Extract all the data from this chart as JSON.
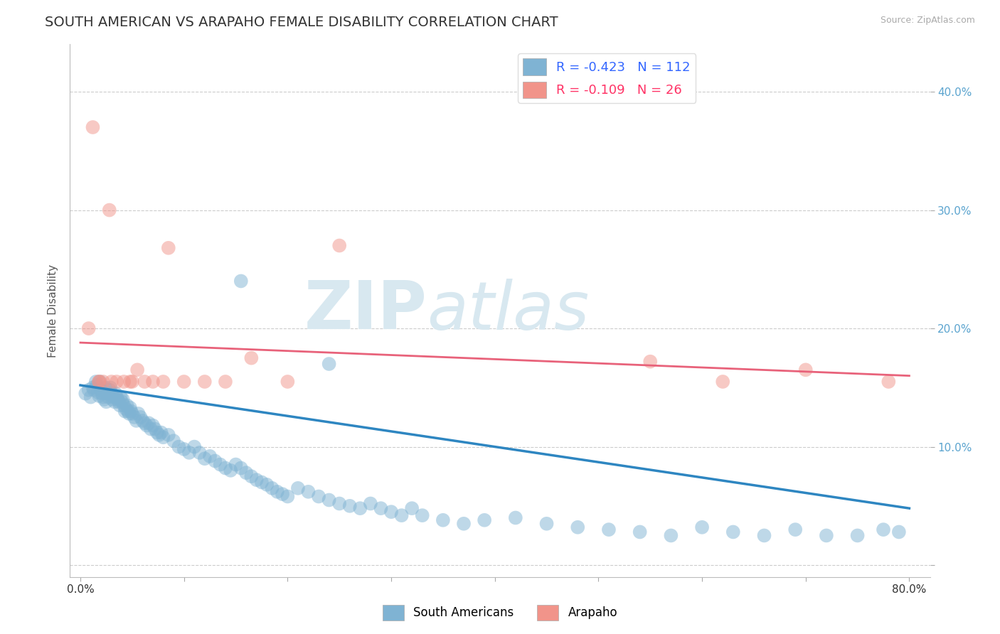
{
  "title": "SOUTH AMERICAN VS ARAPAHO FEMALE DISABILITY CORRELATION CHART",
  "source": "Source: ZipAtlas.com",
  "ylabel": "Female Disability",
  "xlim": [
    -0.01,
    0.82
  ],
  "ylim": [
    -0.01,
    0.44
  ],
  "x_ticks": [
    0.0,
    0.1,
    0.2,
    0.3,
    0.4,
    0.5,
    0.6,
    0.7,
    0.8
  ],
  "y_ticks": [
    0.0,
    0.1,
    0.2,
    0.3,
    0.4
  ],
  "y_tick_labels_right": [
    "",
    "10.0%",
    "20.0%",
    "30.0%",
    "40.0%"
  ],
  "x_tick_labels": [
    "0.0%",
    "",
    "",
    "",
    "",
    "",
    "",
    "",
    "80.0%"
  ],
  "blue_R": -0.423,
  "blue_N": 112,
  "pink_R": -0.109,
  "pink_N": 26,
  "blue_color": "#7FB3D3",
  "pink_color": "#F1948A",
  "blue_line_color": "#2E86C1",
  "pink_line_color": "#E8627A",
  "watermark_zip": "ZIP",
  "watermark_atlas": "atlas",
  "legend_label_blue": "South Americans",
  "legend_label_pink": "Arapaho",
  "blue_x": [
    0.005,
    0.008,
    0.01,
    0.012,
    0.013,
    0.015,
    0.016,
    0.017,
    0.018,
    0.019,
    0.02,
    0.021,
    0.022,
    0.023,
    0.024,
    0.025,
    0.026,
    0.027,
    0.028,
    0.029,
    0.03,
    0.031,
    0.032,
    0.033,
    0.034,
    0.035,
    0.036,
    0.037,
    0.038,
    0.039,
    0.04,
    0.041,
    0.042,
    0.043,
    0.044,
    0.045,
    0.046,
    0.047,
    0.048,
    0.049,
    0.05,
    0.052,
    0.054,
    0.056,
    0.058,
    0.06,
    0.062,
    0.064,
    0.066,
    0.068,
    0.07,
    0.072,
    0.074,
    0.076,
    0.078,
    0.08,
    0.085,
    0.09,
    0.095,
    0.1,
    0.105,
    0.11,
    0.115,
    0.12,
    0.125,
    0.13,
    0.135,
    0.14,
    0.145,
    0.15,
    0.155,
    0.16,
    0.165,
    0.17,
    0.175,
    0.18,
    0.185,
    0.19,
    0.195,
    0.2,
    0.21,
    0.22,
    0.23,
    0.24,
    0.25,
    0.26,
    0.27,
    0.28,
    0.29,
    0.3,
    0.31,
    0.32,
    0.33,
    0.35,
    0.37,
    0.39,
    0.42,
    0.45,
    0.48,
    0.51,
    0.54,
    0.57,
    0.6,
    0.63,
    0.66,
    0.69,
    0.72,
    0.75,
    0.775,
    0.79,
    0.24,
    0.155
  ],
  "blue_y": [
    0.145,
    0.148,
    0.142,
    0.15,
    0.148,
    0.155,
    0.152,
    0.146,
    0.143,
    0.155,
    0.148,
    0.145,
    0.142,
    0.14,
    0.15,
    0.138,
    0.145,
    0.142,
    0.148,
    0.15,
    0.145,
    0.14,
    0.142,
    0.138,
    0.145,
    0.142,
    0.14,
    0.138,
    0.135,
    0.142,
    0.138,
    0.14,
    0.135,
    0.13,
    0.132,
    0.135,
    0.13,
    0.128,
    0.133,
    0.13,
    0.128,
    0.125,
    0.122,
    0.128,
    0.125,
    0.122,
    0.12,
    0.118,
    0.12,
    0.115,
    0.118,
    0.115,
    0.112,
    0.11,
    0.112,
    0.108,
    0.11,
    0.105,
    0.1,
    0.098,
    0.095,
    0.1,
    0.095,
    0.09,
    0.092,
    0.088,
    0.085,
    0.082,
    0.08,
    0.085,
    0.082,
    0.078,
    0.075,
    0.072,
    0.07,
    0.068,
    0.065,
    0.062,
    0.06,
    0.058,
    0.065,
    0.062,
    0.058,
    0.055,
    0.052,
    0.05,
    0.048,
    0.052,
    0.048,
    0.045,
    0.042,
    0.048,
    0.042,
    0.038,
    0.035,
    0.038,
    0.04,
    0.035,
    0.032,
    0.03,
    0.028,
    0.025,
    0.032,
    0.028,
    0.025,
    0.03,
    0.025,
    0.025,
    0.03,
    0.028,
    0.17,
    0.24
  ],
  "pink_x": [
    0.008,
    0.012,
    0.018,
    0.022,
    0.028,
    0.035,
    0.042,
    0.048,
    0.055,
    0.062,
    0.07,
    0.085,
    0.1,
    0.12,
    0.14,
    0.165,
    0.2,
    0.25,
    0.55,
    0.62,
    0.7,
    0.78,
    0.018,
    0.03,
    0.05,
    0.08
  ],
  "pink_y": [
    0.2,
    0.37,
    0.155,
    0.155,
    0.3,
    0.155,
    0.155,
    0.155,
    0.165,
    0.155,
    0.155,
    0.268,
    0.155,
    0.155,
    0.155,
    0.175,
    0.155,
    0.27,
    0.172,
    0.155,
    0.165,
    0.155,
    0.155,
    0.155,
    0.155,
    0.155
  ],
  "blue_trend_y_start": 0.152,
  "blue_trend_y_end": 0.048,
  "pink_trend_y_start": 0.188,
  "pink_trend_y_end": 0.16,
  "grid_color": "#CCCCCC",
  "background_color": "#FFFFFF",
  "title_fontsize": 14,
  "axis_label_fontsize": 11,
  "tick_fontsize": 11
}
